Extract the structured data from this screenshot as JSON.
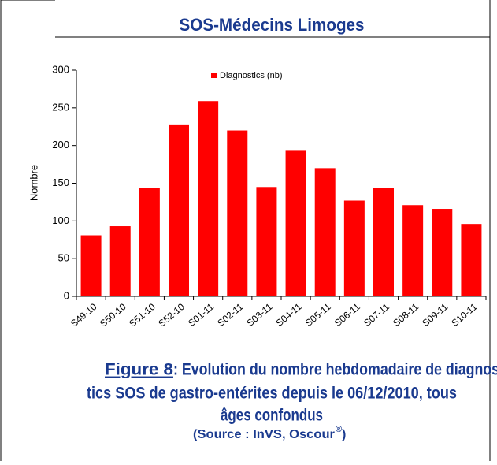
{
  "header": {
    "title": "SOS-Médecins Limoges"
  },
  "chart_data": {
    "type": "bar",
    "y_label": "Nombre",
    "categories": [
      "S49-10",
      "S50-10",
      "S51-10",
      "S52-10",
      "S01-11",
      "S02-11",
      "S03-11",
      "S04-11",
      "S05-11",
      "S06-11",
      "S07-11",
      "S08-11",
      "S09-11",
      "S10-11"
    ],
    "series": [
      {
        "name": "Diagnostics (nb)",
        "color": "#ff0000",
        "values": [
          81,
          93,
          144,
          228,
          259,
          220,
          145,
          194,
          170,
          127,
          144,
          121,
          116,
          96
        ]
      }
    ],
    "ylim": [
      0,
      300
    ],
    "yticks": [
      0,
      50,
      100,
      150,
      200,
      250,
      300
    ],
    "grid": false,
    "legend": "top"
  },
  "caption": {
    "label": "Figure 8",
    "lines": [
      " : Evolution du nombre hebdomadaire de diagnos-",
      "tics SOS de gastro-entérites depuis le 06/12/2010, tous",
      "âges confondus"
    ],
    "source": "(Source : InVS, Oscour",
    "source_mark": "®",
    "source_end": ")"
  }
}
